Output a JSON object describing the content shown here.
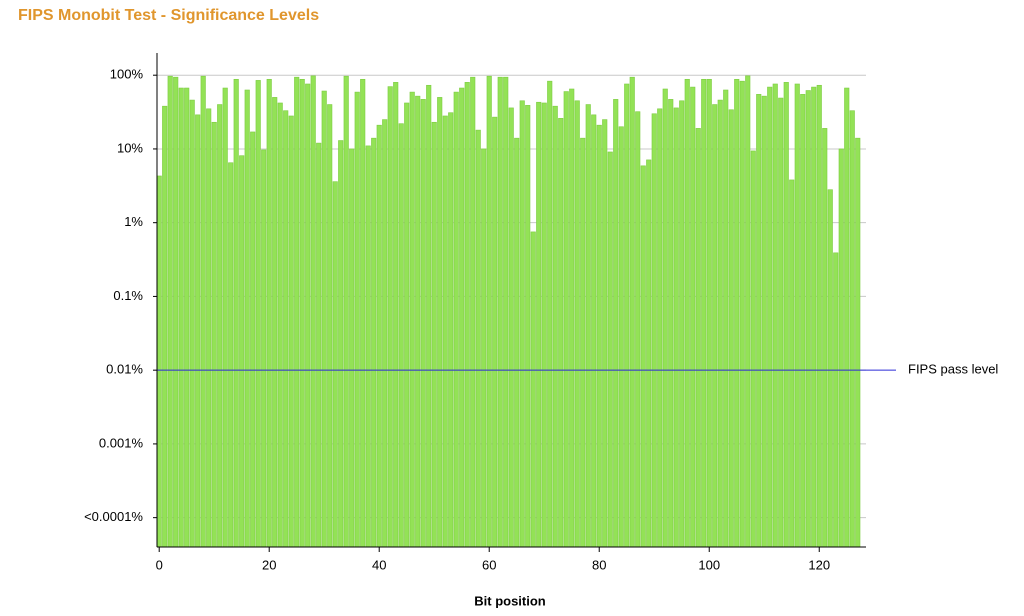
{
  "chart_data": {
    "type": "bar",
    "title": "FIPS Monobit Test - Significance Levels",
    "x_label": "Bit position",
    "x": [
      0,
      1,
      2,
      3,
      4,
      5,
      6,
      7,
      8,
      9,
      10,
      11,
      12,
      13,
      14,
      15,
      16,
      17,
      18,
      19,
      20,
      21,
      22,
      23,
      24,
      25,
      26,
      27,
      28,
      29,
      30,
      31,
      32,
      33,
      34,
      35,
      36,
      37,
      38,
      39,
      40,
      41,
      42,
      43,
      44,
      45,
      46,
      47,
      48,
      49,
      50,
      51,
      52,
      53,
      54,
      55,
      56,
      57,
      58,
      59,
      60,
      61,
      62,
      63,
      64,
      65,
      66,
      67,
      68,
      69,
      70,
      71,
      72,
      73,
      74,
      75,
      76,
      77,
      78,
      79,
      80,
      81,
      82,
      83,
      84,
      85,
      86,
      87,
      88,
      89,
      90,
      91,
      92,
      93,
      94,
      95,
      96,
      97,
      98,
      99,
      100,
      101,
      102,
      103,
      104,
      105,
      106,
      107,
      108,
      109,
      110,
      111,
      112,
      113,
      114,
      115,
      116,
      117,
      118,
      119,
      120,
      121,
      122,
      123,
      124,
      125,
      126,
      127
    ],
    "values": [
      4.3,
      38,
      97,
      94,
      67,
      67,
      46,
      29,
      97,
      35,
      23,
      40,
      67,
      6.5,
      88,
      8.1,
      63,
      17,
      85,
      9.7,
      88,
      50,
      42,
      33,
      28,
      94,
      88,
      76,
      98,
      12,
      61,
      40,
      3.6,
      13,
      97,
      10,
      59,
      88,
      11,
      14,
      21,
      25,
      70,
      80,
      22,
      42,
      59,
      52,
      47,
      73,
      23,
      50,
      28,
      31,
      59,
      67,
      80,
      94,
      18,
      10,
      97,
      27,
      94,
      94,
      36,
      14,
      45,
      39,
      0.75,
      43,
      42,
      83,
      38,
      26,
      60,
      65,
      45,
      14,
      40,
      29,
      21,
      25,
      9.1,
      47,
      20,
      76,
      94,
      32,
      5.9,
      7.1,
      30,
      35,
      65,
      47,
      36,
      45,
      88,
      69,
      19,
      88,
      88,
      40,
      46,
      63,
      34,
      88,
      83,
      98,
      9.4,
      55,
      52,
      69,
      76,
      49,
      80,
      3.8,
      76,
      55,
      62,
      69,
      73,
      19,
      2.8,
      0.39,
      10,
      67,
      33,
      14
    ],
    "color": "#93e256",
    "xlim": [
      -0.4,
      128.5
    ],
    "xticks": [
      0,
      20,
      40,
      60,
      80,
      100,
      120
    ],
    "log_scale": true,
    "ylim": [
      4e-05,
      200
    ],
    "yticks": [
      {
        "value": 0.0001,
        "label": "<0.0001%"
      },
      {
        "value": 0.001,
        "label": "0.001%"
      },
      {
        "value": 0.01,
        "label": "0.01%"
      },
      {
        "value": 0.1,
        "label": "0.1%"
      },
      {
        "value": 1,
        "label": "1%"
      },
      {
        "value": 10,
        "label": "10%"
      },
      {
        "value": 100,
        "label": "100%"
      }
    ],
    "grid": true,
    "annotation": {
      "text": "FIPS pass level",
      "value": 0.01,
      "color": "#2b2bd6"
    }
  }
}
